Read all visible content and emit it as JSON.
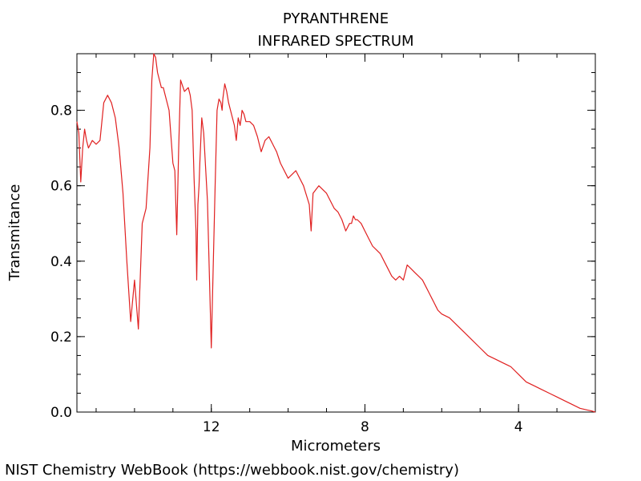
{
  "chart_data": {
    "type": "line",
    "title": "PYRANTHRENE",
    "subtitle": "INFRARED SPECTRUM",
    "xlabel": "Micrometers",
    "ylabel": "Transmitance",
    "xlim": [
      15.5,
      2.0
    ],
    "ylim": [
      0.0,
      0.95
    ],
    "x_ticks": [
      {
        "value": 12,
        "label": "12"
      },
      {
        "value": 8,
        "label": "8"
      },
      {
        "value": 4,
        "label": "4"
      }
    ],
    "y_ticks": [
      {
        "value": 0.0,
        "label": "0.0"
      },
      {
        "value": 0.2,
        "label": "0.2"
      },
      {
        "value": 0.4,
        "label": "0.4"
      },
      {
        "value": 0.6,
        "label": "0.6"
      },
      {
        "value": 0.8,
        "label": "0.8"
      }
    ],
    "grid": false,
    "series": [
      {
        "color": "#e02020",
        "x": [
          15.5,
          15.45,
          15.4,
          15.35,
          15.3,
          15.25,
          15.2,
          15.1,
          15.0,
          14.9,
          14.8,
          14.7,
          14.6,
          14.5,
          14.4,
          14.3,
          14.2,
          14.1,
          14.0,
          13.9,
          13.8,
          13.7,
          13.6,
          13.55,
          13.5,
          13.45,
          13.4,
          13.35,
          13.3,
          13.25,
          13.2,
          13.1,
          13.0,
          12.95,
          12.9,
          12.85,
          12.8,
          12.7,
          12.6,
          12.55,
          12.5,
          12.45,
          12.4,
          12.38,
          12.35,
          12.32,
          12.3,
          12.25,
          12.2,
          12.1,
          12.0,
          11.9,
          11.85,
          11.8,
          11.75,
          11.72,
          11.7,
          11.65,
          11.6,
          11.55,
          11.5,
          11.45,
          11.4,
          11.35,
          11.3,
          11.25,
          11.22,
          11.2,
          11.15,
          11.1,
          11.05,
          11.0,
          10.9,
          10.8,
          10.75,
          10.7,
          10.6,
          10.5,
          10.45,
          10.4,
          10.35,
          10.3,
          10.2,
          10.0,
          9.8,
          9.6,
          9.45,
          9.4,
          9.35,
          9.2,
          9.0,
          8.8,
          8.7,
          8.6,
          8.5,
          8.4,
          8.35,
          8.3,
          8.25,
          8.2,
          8.1,
          8.0,
          7.9,
          7.8,
          7.7,
          7.6,
          7.5,
          7.4,
          7.3,
          7.2,
          7.1,
          7.0,
          6.9,
          6.8,
          6.7,
          6.6,
          6.5,
          6.4,
          6.35,
          6.3,
          6.25,
          6.2,
          6.15,
          6.1,
          6.0,
          5.8,
          5.6,
          5.4,
          5.2,
          5.0,
          4.8,
          4.6,
          4.4,
          4.2,
          4.0,
          3.8,
          3.6,
          3.4,
          3.2,
          3.0,
          2.8,
          2.6,
          2.4,
          2.2,
          2.1,
          2.0
        ],
        "y": [
          0.77,
          0.74,
          0.61,
          0.7,
          0.75,
          0.72,
          0.7,
          0.72,
          0.71,
          0.72,
          0.82,
          0.84,
          0.82,
          0.78,
          0.7,
          0.58,
          0.4,
          0.24,
          0.35,
          0.22,
          0.5,
          0.54,
          0.7,
          0.88,
          0.95,
          0.94,
          0.9,
          0.88,
          0.86,
          0.86,
          0.84,
          0.8,
          0.66,
          0.64,
          0.47,
          0.7,
          0.88,
          0.85,
          0.86,
          0.84,
          0.8,
          0.62,
          0.48,
          0.35,
          0.55,
          0.6,
          0.66,
          0.78,
          0.74,
          0.56,
          0.17,
          0.6,
          0.8,
          0.83,
          0.82,
          0.8,
          0.83,
          0.87,
          0.85,
          0.82,
          0.8,
          0.78,
          0.76,
          0.72,
          0.78,
          0.76,
          0.78,
          0.8,
          0.79,
          0.77,
          0.77,
          0.77,
          0.76,
          0.73,
          0.71,
          0.69,
          0.72,
          0.73,
          0.72,
          0.71,
          0.7,
          0.69,
          0.66,
          0.62,
          0.64,
          0.6,
          0.55,
          0.48,
          0.58,
          0.6,
          0.58,
          0.54,
          0.53,
          0.51,
          0.48,
          0.5,
          0.5,
          0.52,
          0.51,
          0.51,
          0.5,
          0.48,
          0.46,
          0.44,
          0.43,
          0.42,
          0.4,
          0.38,
          0.36,
          0.35,
          0.36,
          0.35,
          0.39,
          0.38,
          0.37,
          0.36,
          0.35,
          0.33,
          0.32,
          0.31,
          0.3,
          0.29,
          0.28,
          0.27,
          0.26,
          0.25,
          0.23,
          0.21,
          0.19,
          0.17,
          0.15,
          0.14,
          0.13,
          0.12,
          0.1,
          0.08,
          0.07,
          0.06,
          0.05,
          0.04,
          0.03,
          0.02,
          0.01,
          0.005,
          0.003,
          0.0
        ]
      }
    ]
  },
  "footer": {
    "credit": "NIST Chemistry WebBook (https://webbook.nist.gov/chemistry)"
  }
}
